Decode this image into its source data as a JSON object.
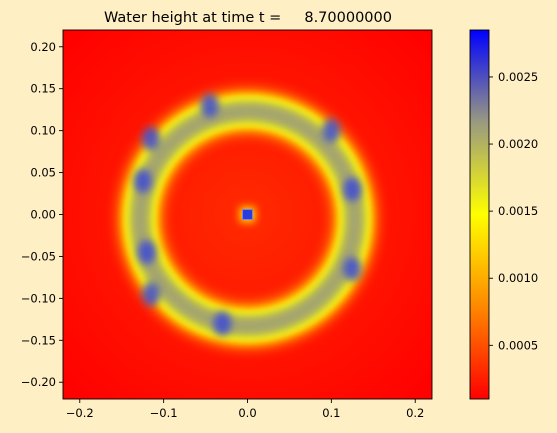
{
  "background": "#FFEFC4",
  "chart_data": {
    "type": "heatmap",
    "title": "Water height at time t =     8.70000000",
    "xlim": [
      -0.22,
      0.22
    ],
    "ylim": [
      -0.22,
      0.22
    ],
    "x_ticks": [
      -0.2,
      -0.1,
      0.0,
      0.1,
      0.2
    ],
    "x_tick_labels": [
      "−0.2",
      "−0.1",
      "0.0",
      "0.1",
      "0.2"
    ],
    "y_ticks": [
      0.2,
      0.15,
      0.1,
      0.05,
      0.0,
      -0.05,
      -0.1,
      -0.15,
      -0.2
    ],
    "y_tick_labels": [
      "0.20",
      "0.15",
      "0.10",
      "0.05",
      "0.00",
      "−0.05",
      "−0.10",
      "−0.15",
      "−0.20"
    ],
    "colorbar": {
      "range": [
        0.0001,
        0.00285
      ],
      "ticks": [
        0.0005,
        0.001,
        0.0015,
        0.002,
        0.0025
      ],
      "tick_labels": [
        "0.0005",
        "0.0010",
        "0.0015",
        "0.0020",
        "0.0025"
      ],
      "colormap": [
        "#FF0000",
        "#FF8800",
        "#FFFF00",
        "#9A9A80",
        "#0000FF"
      ]
    },
    "field": {
      "background_value": 0.0001,
      "ring_center": [
        0.0,
        -0.005
      ],
      "ring_radius": 0.128,
      "ring_peak": 0.0021,
      "center_spot": {
        "x": 0.0,
        "y": 0.0,
        "value": 0.0028
      },
      "blue_spots": [
        {
          "x": -0.115,
          "y": 0.09
        },
        {
          "x": -0.125,
          "y": 0.04
        },
        {
          "x": -0.12,
          "y": -0.045
        },
        {
          "x": -0.115,
          "y": -0.095
        },
        {
          "x": -0.03,
          "y": -0.13
        },
        {
          "x": -0.045,
          "y": 0.13
        },
        {
          "x": 0.125,
          "y": 0.03
        },
        {
          "x": 0.125,
          "y": -0.065
        },
        {
          "x": 0.1,
          "y": 0.1
        }
      ]
    }
  }
}
